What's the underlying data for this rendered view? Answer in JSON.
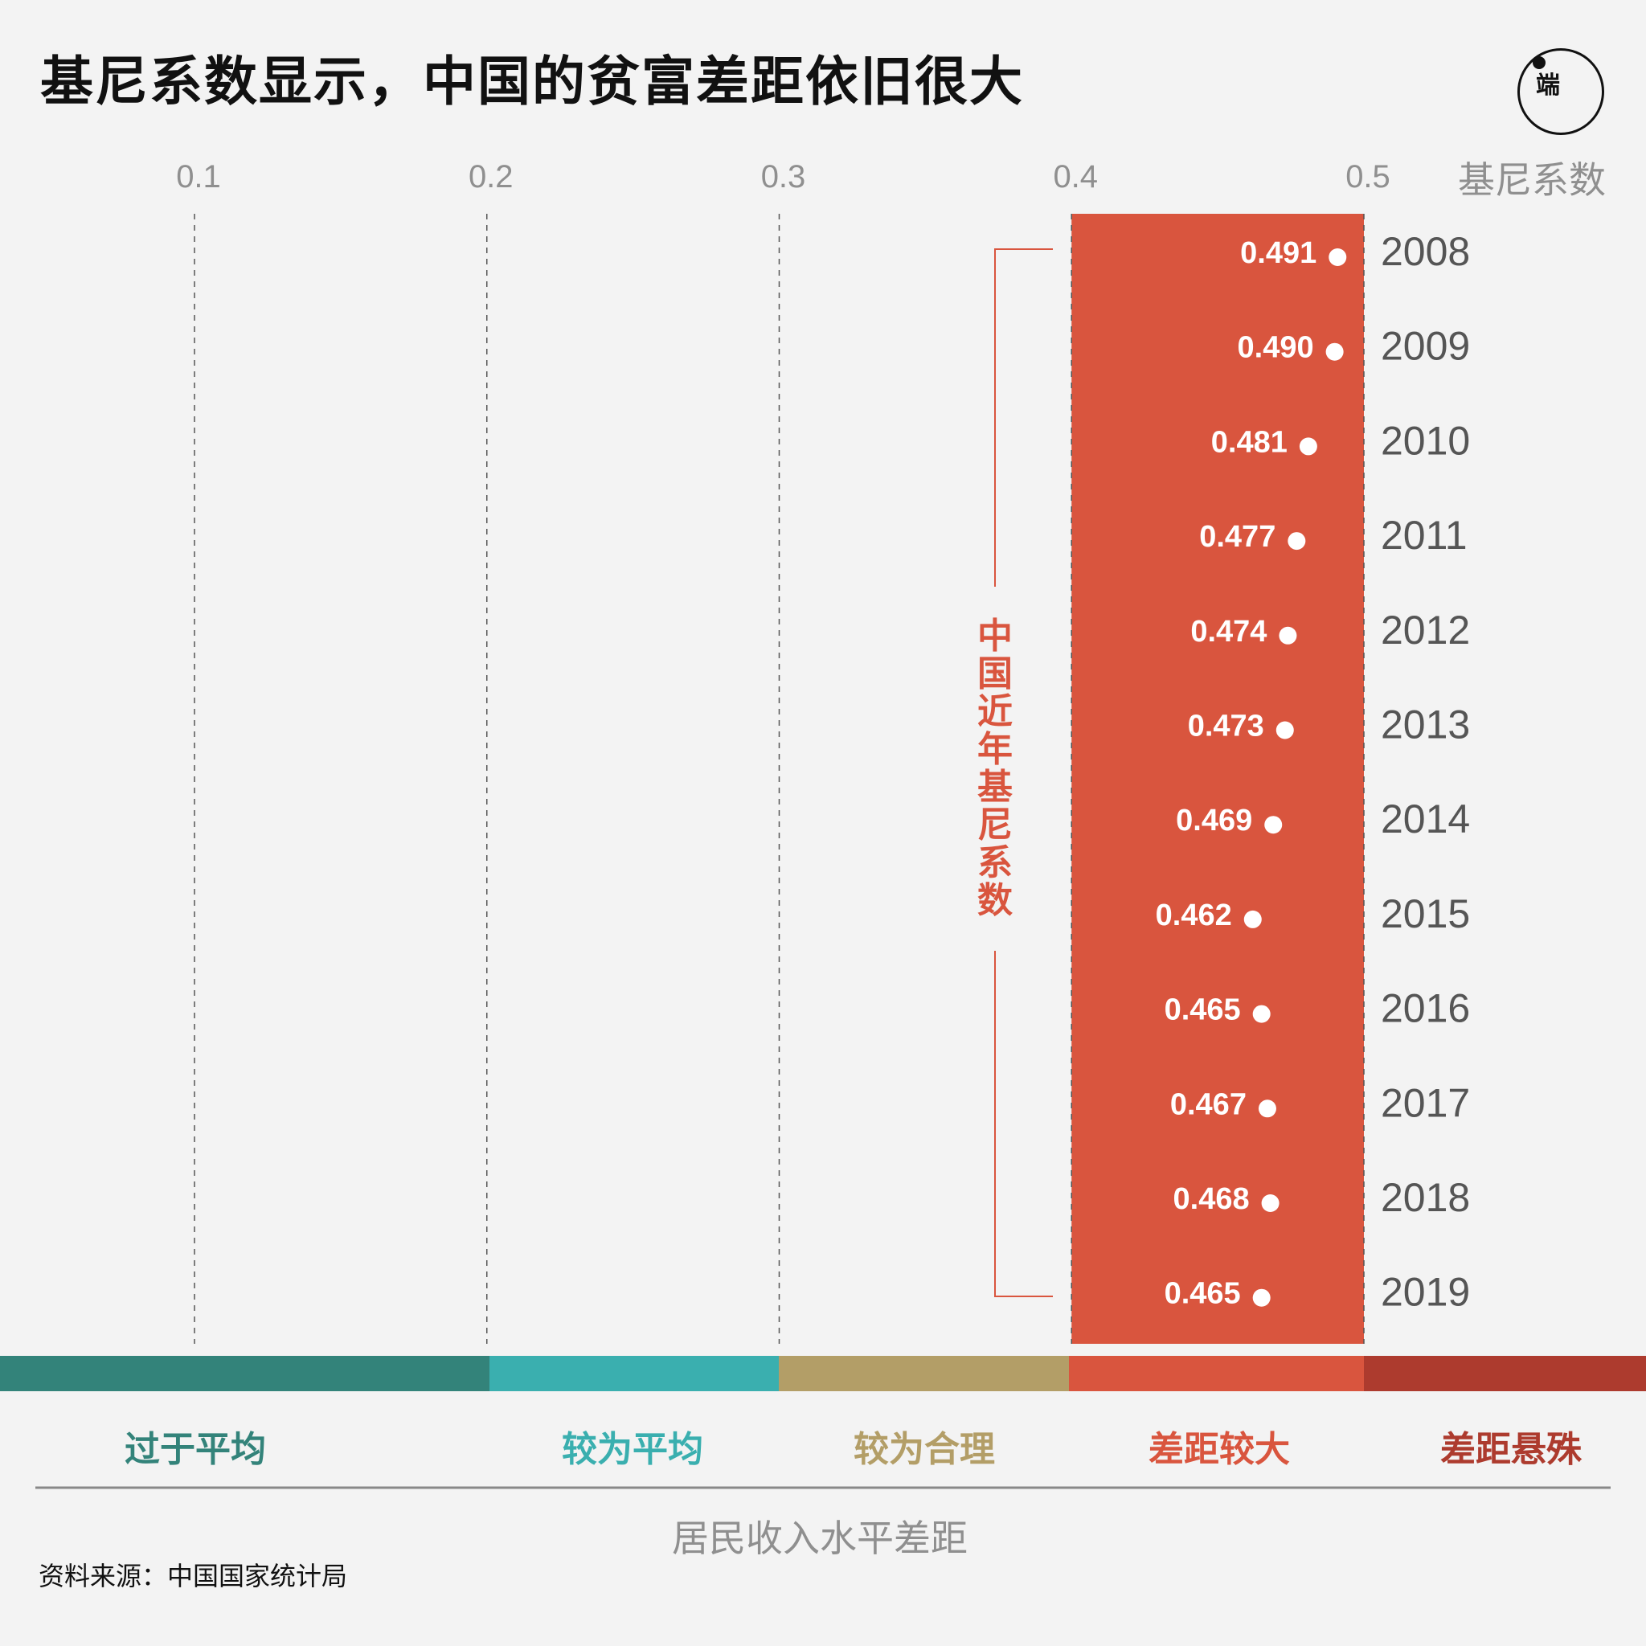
{
  "title": "基尼系数显示，中国的贫富差距依旧很大",
  "logo": {
    "text": "端",
    "icon": "initium-logo"
  },
  "source": "资料来源：中国国家统计局",
  "chart_data": {
    "type": "scatter",
    "title": "基尼系数显示，中国的贫富差距依旧很大",
    "axis_name": "基尼系数",
    "xlabel": "居民收入水平差距",
    "x_ticks": [
      "0.1",
      "0.2",
      "0.3",
      "0.4",
      "0.5"
    ],
    "tick_values": [
      0.1,
      0.2,
      0.3,
      0.4,
      0.5
    ],
    "xlim": [
      0.1,
      0.5
    ],
    "grid": true,
    "years": [
      "2008",
      "2009",
      "2010",
      "2011",
      "2012",
      "2013",
      "2014",
      "2015",
      "2016",
      "2017",
      "2018",
      "2019"
    ],
    "values": [
      0.491,
      0.49,
      0.481,
      0.477,
      0.474,
      0.473,
      0.469,
      0.462,
      0.465,
      0.467,
      0.468,
      0.465
    ],
    "value_labels": [
      "0.491",
      "0.490",
      "0.481",
      "0.477",
      "0.474",
      "0.473",
      "0.469",
      "0.462",
      "0.465",
      "0.467",
      "0.468",
      "0.465"
    ],
    "highlight_range": [
      0.4,
      0.5
    ],
    "annotation": "中国近年基尼系数",
    "bands": [
      {
        "label": "过于平均",
        "from": 0.0,
        "to": 0.2,
        "color": "#33837a"
      },
      {
        "label": "较为平均",
        "from": 0.2,
        "to": 0.3,
        "color": "#3aafaf"
      },
      {
        "label": "较为合理",
        "from": 0.3,
        "to": 0.4,
        "color": "#b39e67"
      },
      {
        "label": "差距较大",
        "from": 0.4,
        "to": 0.5,
        "color": "#d9553e"
      },
      {
        "label": "差距悬殊",
        "from": 0.5,
        "to": 0.6,
        "color": "#ad3b2e"
      }
    ],
    "colors": {
      "highlight": "#d9553e",
      "dot": "#ffffff",
      "text": "#111111"
    }
  }
}
